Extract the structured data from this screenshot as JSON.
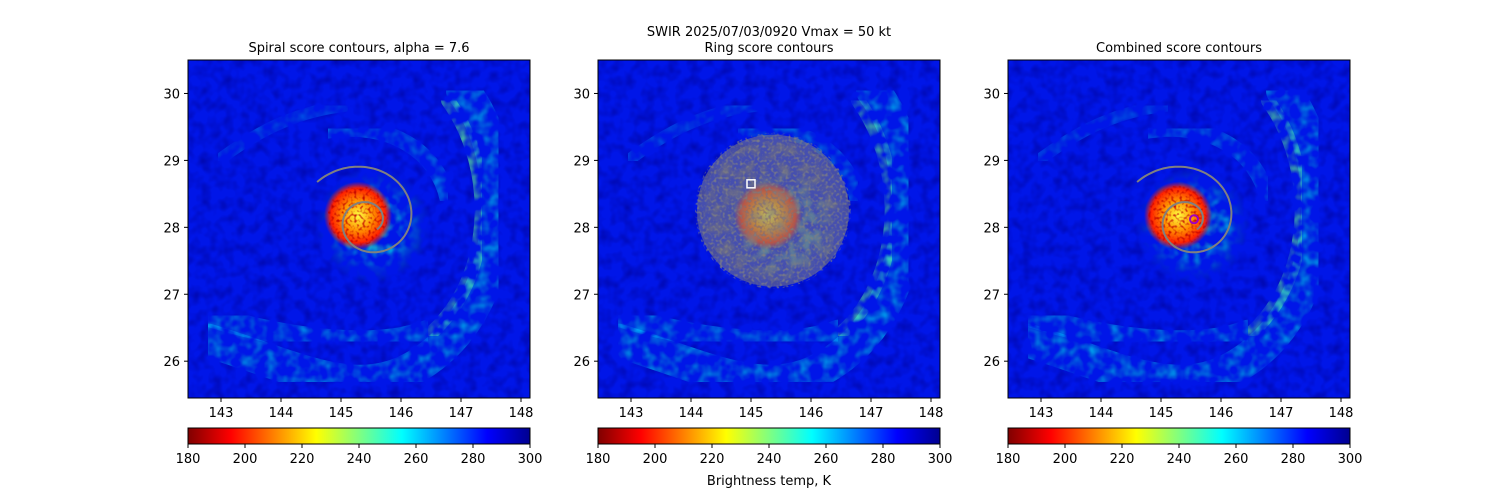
{
  "suptitle": "SWIR  2025/07/03/0920    Vmax = 50 kt",
  "colorbar_label": "Brightness temp, K",
  "colormap": [
    "#800000",
    "#ff0000",
    "#ff8000",
    "#ffff00",
    "#80ff80",
    "#00ffff",
    "#0080ff",
    "#0000ff",
    "#00008f"
  ],
  "contour_color": "#808080",
  "chart_data": [
    {
      "type": "heatmap",
      "title": "Spiral score contours, alpha =  7.6",
      "xlim": [
        142.45,
        148.15
      ],
      "ylim": [
        25.45,
        30.5
      ],
      "x_ticks": [
        "143",
        "144",
        "145",
        "146",
        "147",
        "148"
      ],
      "y_ticks": [
        "26",
        "27",
        "28",
        "29",
        "30"
      ],
      "colorbar": {
        "min": 180,
        "max": 300,
        "ticks": [
          "180",
          "200",
          "220",
          "240",
          "260",
          "280",
          "300"
        ]
      },
      "storm_center": [
        145.45,
        28.1
      ],
      "overlay": "spiral contour"
    },
    {
      "type": "heatmap",
      "title": "Ring score contours",
      "xlim": [
        142.45,
        148.15
      ],
      "ylim": [
        25.45,
        30.5
      ],
      "x_ticks": [
        "143",
        "144",
        "145",
        "146",
        "147",
        "148"
      ],
      "y_ticks": [
        "26",
        "27",
        "28",
        "29",
        "30"
      ],
      "colorbar": {
        "min": 180,
        "max": 300,
        "ticks": [
          "180",
          "200",
          "220",
          "240",
          "260",
          "280",
          "300"
        ]
      },
      "storm_center": [
        145.45,
        28.1
      ],
      "overlay": "ring score region",
      "marker": {
        "shape": "square",
        "color": "#ffffff",
        "x": 145.0,
        "y": 28.65
      }
    },
    {
      "type": "heatmap",
      "title": "Combined score contours",
      "xlim": [
        142.45,
        148.15
      ],
      "ylim": [
        25.45,
        30.5
      ],
      "x_ticks": [
        "143",
        "144",
        "145",
        "146",
        "147",
        "148"
      ],
      "y_ticks": [
        "26",
        "27",
        "28",
        "29",
        "30"
      ],
      "colorbar": {
        "min": 180,
        "max": 300,
        "ticks": [
          "180",
          "200",
          "220",
          "240",
          "260",
          "280",
          "300"
        ]
      },
      "storm_center": [
        145.45,
        28.1
      ],
      "overlay": "spiral contour",
      "marker": {
        "shape": "circle",
        "color": "#a000c0",
        "x": 145.55,
        "y": 28.12
      }
    }
  ]
}
